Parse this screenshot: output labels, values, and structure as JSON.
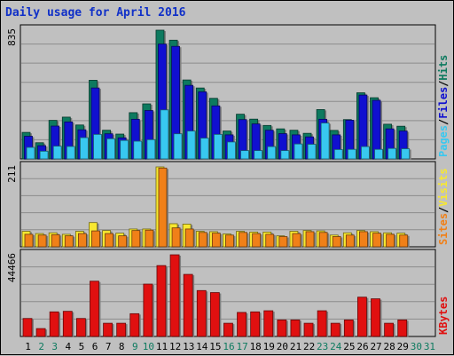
{
  "title": "Daily usage for April 2016",
  "colors": {
    "background": "#c0c0c0",
    "hits": "#0d7a5f",
    "files": "#1010d0",
    "pages": "#38c8f0",
    "visits": "#f8e830",
    "sites": "#f08018",
    "kbytes": "#e01010",
    "weekend_label": "#0d7a5f",
    "title": "#1030c8"
  },
  "chart_data": [
    {
      "type": "bar",
      "title": "Daily usage for April 2016",
      "categories": [
        "1",
        "2",
        "3",
        "4",
        "5",
        "6",
        "7",
        "8",
        "9",
        "10",
        "11",
        "12",
        "13",
        "14",
        "15",
        "16",
        "17",
        "18",
        "19",
        "20",
        "21",
        "22",
        "23",
        "24",
        "25",
        "26",
        "27",
        "28",
        "29",
        "30",
        "31"
      ],
      "weekend_days": [
        "2",
        "3",
        "9",
        "10",
        "16",
        "17",
        "23",
        "24",
        "30",
        "31"
      ],
      "ymax_label": "835",
      "ylim": [
        0,
        835
      ],
      "grid": true,
      "legend": [
        {
          "label": "Pages",
          "color": "#38c8f0"
        },
        {
          "label": "Files",
          "color": "#1010d0"
        },
        {
          "label": "Hits",
          "color": "#0d7a5f"
        }
      ],
      "series": [
        {
          "name": "Hits",
          "values": [
            172,
            105,
            250,
            271,
            220,
            510,
            186,
            161,
            300,
            357,
            835,
            770,
            512,
            460,
            393,
            181,
            290,
            258,
            217,
            195,
            186,
            166,
            320,
            185,
            255,
            429,
            397,
            225,
            212,
            0,
            0
          ]
        },
        {
          "name": "Files",
          "values": [
            147,
            86,
            213,
            240,
            189,
            460,
            163,
            137,
            257,
            314,
            745,
            730,
            477,
            435,
            344,
            156,
            255,
            227,
            186,
            164,
            156,
            143,
            257,
            156,
            251,
            414,
            380,
            195,
            181,
            0,
            0
          ]
        },
        {
          "name": "Pages",
          "values": [
            75,
            50,
            83,
            81,
            138,
            159,
            131,
            120,
            115,
            125,
            318,
            163,
            181,
            135,
            159,
            110,
            54,
            54,
            80,
            54,
            97,
            95,
            233,
            61,
            62,
            80,
            62,
            68,
            66,
            0,
            0
          ]
        }
      ]
    },
    {
      "type": "bar",
      "categories": [
        "1",
        "2",
        "3",
        "4",
        "5",
        "6",
        "7",
        "8",
        "9",
        "10",
        "11",
        "12",
        "13",
        "14",
        "15",
        "16",
        "17",
        "18",
        "19",
        "20",
        "21",
        "22",
        "23",
        "24",
        "25",
        "26",
        "27",
        "28",
        "29",
        "30",
        "31"
      ],
      "ymax_label": "211",
      "ylim": [
        0,
        211
      ],
      "legend": [
        {
          "label": "Sites",
          "color": "#f08018"
        },
        {
          "label": "Visits",
          "color": "#f8e830"
        }
      ],
      "series": [
        {
          "name": "Visits",
          "values": [
            41,
            35,
            37,
            33,
            41,
            64,
            43,
            36,
            47,
            47,
            211,
            61,
            60,
            41,
            40,
            34,
            41,
            39,
            39,
            29,
            41,
            43,
            42,
            31,
            37,
            43,
            40,
            37,
            36,
            0,
            0
          ]
        },
        {
          "name": "Sites",
          "values": [
            33,
            31,
            32,
            29,
            35,
            42,
            35,
            29,
            43,
            44,
            208,
            50,
            47,
            38,
            36,
            31,
            38,
            35,
            33,
            27,
            35,
            40,
            38,
            27,
            31,
            40,
            36,
            33,
            31,
            0,
            0
          ]
        }
      ]
    },
    {
      "type": "bar",
      "categories": [
        "1",
        "2",
        "3",
        "4",
        "5",
        "6",
        "7",
        "8",
        "9",
        "10",
        "11",
        "12",
        "13",
        "14",
        "15",
        "16",
        "17",
        "18",
        "19",
        "20",
        "21",
        "22",
        "23",
        "24",
        "25",
        "26",
        "27",
        "28",
        "29",
        "30",
        "31"
      ],
      "ymax_label": "44466",
      "ylim": [
        0,
        44466
      ],
      "legend": [
        {
          "label": "KBytes",
          "color": "#e01010"
        }
      ],
      "series": [
        {
          "name": "KBytes",
          "values": [
            9800,
            4300,
            13400,
            13700,
            9800,
            30100,
            7200,
            7200,
            12400,
            28500,
            38600,
            44466,
            33800,
            25000,
            23900,
            7200,
            13100,
            13400,
            14000,
            9000,
            9000,
            7200,
            14000,
            7200,
            9000,
            21400,
            20500,
            7200,
            9000,
            0,
            0
          ]
        }
      ]
    }
  ]
}
